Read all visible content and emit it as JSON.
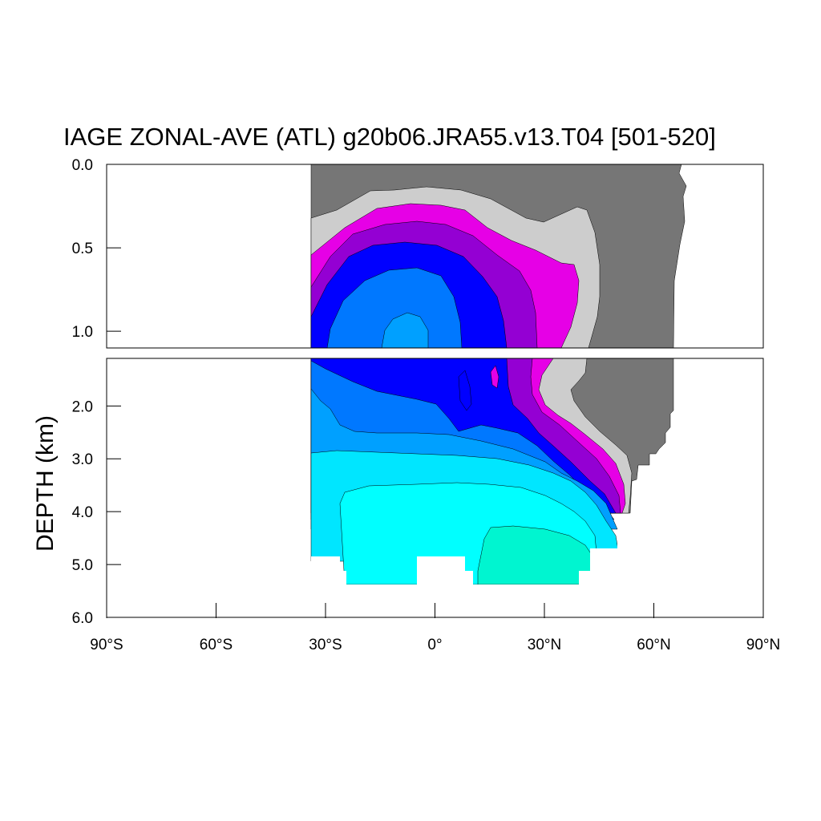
{
  "chart_data": {
    "type": "contour",
    "title": "IAGE ZONAL-AVE (ATL) g20b06.JRA55.v13.T04 [501-520]",
    "ylabel": "DEPTH (km)",
    "xlabel": "",
    "xlim": [
      -90,
      90
    ],
    "top_panel_ylim": [
      0.0,
      1.1
    ],
    "bottom_panel_ylim": [
      1.1,
      6.0
    ],
    "x_ticks": [
      {
        "value": -90,
        "label": "90°S"
      },
      {
        "value": -60,
        "label": "60°S"
      },
      {
        "value": -30,
        "label": "30°S"
      },
      {
        "value": 0,
        "label": "0°"
      },
      {
        "value": 30,
        "label": "30°N"
      },
      {
        "value": 60,
        "label": "60°N"
      },
      {
        "value": 90,
        "label": "90°N"
      }
    ],
    "top_y_ticks": [
      {
        "value": 0.0,
        "label": "0.0"
      },
      {
        "value": 0.5,
        "label": "0.5"
      },
      {
        "value": 1.0,
        "label": "1.0"
      }
    ],
    "bottom_y_ticks": [
      {
        "value": 2.0,
        "label": "2.0"
      },
      {
        "value": 3.0,
        "label": "3.0"
      },
      {
        "value": 4.0,
        "label": "4.0"
      },
      {
        "value": 5.0,
        "label": "5.0"
      },
      {
        "value": 6.0,
        "label": "6.0"
      }
    ],
    "fill_levels": [
      "#767676",
      "#cdcdcd",
      "#e600e6",
      "#9400d3",
      "#0000ff",
      "#0078ff",
      "#00a0ff",
      "#00e6ff",
      "#00ffff",
      "#00f5d0"
    ],
    "data_extent_lon": [
      -34,
      68
    ]
  }
}
